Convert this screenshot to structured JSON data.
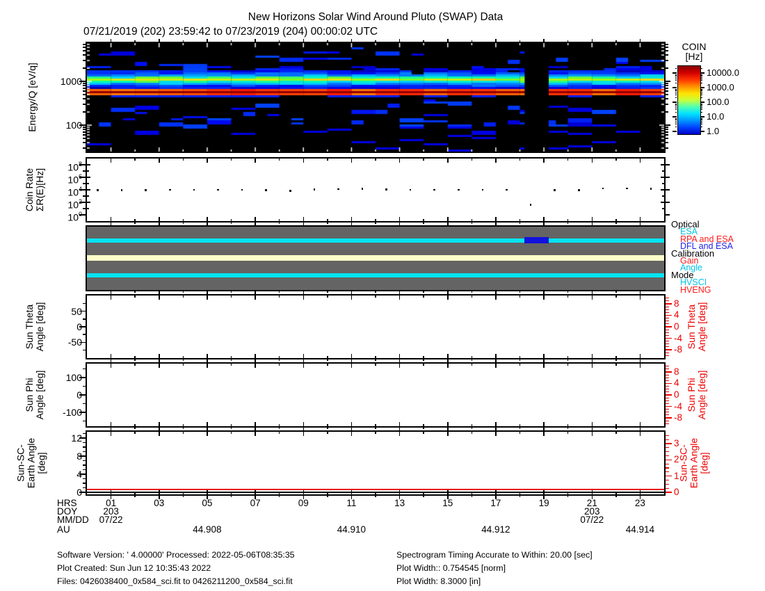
{
  "header": {
    "title": "New Horizons Solar Wind Around Pluto (SWAP) Data",
    "subtitle": "07/21/2019 (202) 23:59:42 to 07/23/2019 (204) 00:00:02 UTC"
  },
  "colorbar": {
    "title_line1": "COIN",
    "title_line2": "[Hz]",
    "tick_labels": [
      "10000.0",
      "1000.0",
      "100.0",
      "10.0",
      "1.0"
    ],
    "gradient_stops": [
      "#8a0000",
      "#d10000",
      "#ff3300",
      "#ff9100",
      "#ffe100",
      "#c8ff3c",
      "#50ffb4",
      "#00e1ff",
      "#0096ff",
      "#0041ff",
      "#0000c8"
    ]
  },
  "panels": {
    "spectrogram": {
      "ylabel": "Energy/Q [eV/q]",
      "ytick_labels": [
        "1000",
        "100"
      ]
    },
    "coin_rate": {
      "ylabel_lines": [
        "Coin Rate",
        "ΣR(E)[Hz]"
      ],
      "ytick_exponents": [
        8,
        6,
        4,
        2,
        0
      ]
    },
    "status": {
      "groups": [
        {
          "label": "Optical",
          "color": "#000000",
          "items": [
            {
              "label": "ESA",
              "color": "#00c4e8"
            },
            {
              "label": "RPA and ESA",
              "color": "#ff1a1a"
            },
            {
              "label": "DFL and ESA",
              "color": "#2222ee"
            }
          ]
        },
        {
          "label": "Calibration",
          "color": "#000000",
          "items": [
            {
              "label": "Gain",
              "color": "#ff1a1a"
            },
            {
              "label": "Angle",
              "color": "#00c4e8"
            }
          ]
        },
        {
          "label": "Mode",
          "color": "#000000",
          "items": [
            {
              "label": "HVSCI",
              "color": "#00c4e8"
            },
            {
              "label": "HVENG",
              "color": "#ff1a1a"
            }
          ]
        }
      ]
    },
    "sun_theta": {
      "title_lines": [
        "Sun Theta",
        "Angle [deg]"
      ],
      "left_ticks": [
        {
          "v": 50,
          "label": "50"
        },
        {
          "v": 0,
          "label": "0"
        },
        {
          "v": -50,
          "label": "-50"
        }
      ],
      "left_range": [
        -101,
        101
      ],
      "right_ticks": [
        {
          "v": 8,
          "label": "8"
        },
        {
          "v": 4,
          "label": "4"
        },
        {
          "v": 0,
          "label": "0"
        },
        {
          "v": -4,
          "label": "-4"
        },
        {
          "v": -8,
          "label": "-8"
        }
      ],
      "right_range": [
        -10.9,
        10.9
      ],
      "right_title_lines": [
        "Sun Theta",
        "Angle [deg]"
      ]
    },
    "sun_phi": {
      "title_lines": [
        "Sun Phi",
        "Angle [deg]"
      ],
      "left_ticks": [
        {
          "v": 100,
          "label": "100"
        },
        {
          "v": 0,
          "label": "0"
        },
        {
          "v": -100,
          "label": "-100"
        }
      ],
      "left_range": [
        -180,
        180
      ],
      "right_ticks": [
        {
          "v": 8,
          "label": "8"
        },
        {
          "v": 4,
          "label": "4"
        },
        {
          "v": 0,
          "label": "0"
        },
        {
          "v": -4,
          "label": "-4"
        },
        {
          "v": -8,
          "label": "-8"
        }
      ],
      "right_range": [
        -10.9,
        10.9
      ],
      "right_title_lines": [
        "Sun Phi",
        "Angle [deg]"
      ]
    },
    "sun_sc_earth": {
      "title_lines": [
        "Sun-SC-",
        "Earth Angle",
        "[deg]"
      ],
      "left_ticks": [
        {
          "v": 12,
          "label": "12"
        },
        {
          "v": 8,
          "label": "8"
        },
        {
          "v": 4,
          "label": "4"
        },
        {
          "v": 0,
          "label": "0"
        }
      ],
      "left_range": [
        -0.46,
        13.4
      ],
      "right_ticks": [
        {
          "v": 3,
          "label": "3"
        },
        {
          "v": 2,
          "label": "2"
        },
        {
          "v": 1,
          "label": "1"
        },
        {
          "v": 0,
          "label": "0"
        }
      ],
      "right_range": [
        -0.13,
        3.73
      ],
      "right_title_lines": [
        "Sun-SC-",
        "Earth Angle",
        "[deg]"
      ]
    }
  },
  "xaxis": {
    "row_labels": [
      "HRS",
      "DOY",
      "MM/DD",
      "AU"
    ],
    "hour_labels": [
      {
        "hour": 1,
        "label": "01"
      },
      {
        "hour": 3,
        "label": "03"
      },
      {
        "hour": 5,
        "label": "05"
      },
      {
        "hour": 7,
        "label": "07"
      },
      {
        "hour": 9,
        "label": "09"
      },
      {
        "hour": 11,
        "label": "11"
      },
      {
        "hour": 13,
        "label": "13"
      },
      {
        "hour": 15,
        "label": "15"
      },
      {
        "hour": 17,
        "label": "17"
      },
      {
        "hour": 19,
        "label": "19"
      },
      {
        "hour": 21,
        "label": "21"
      },
      {
        "hour": 23,
        "label": "23"
      }
    ],
    "doy_entries": [
      {
        "hour": 1,
        "doy": "203",
        "mmdd": "07/22"
      },
      {
        "hour": 21,
        "doy": "203",
        "mmdd": "07/22"
      }
    ],
    "au_entries": [
      {
        "hour": 5,
        "label": "44.908"
      },
      {
        "hour": 11,
        "label": "44.910"
      },
      {
        "hour": 17,
        "label": "44.912"
      },
      {
        "hour": 23,
        "label": "44.914"
      }
    ]
  },
  "footer": {
    "left": [
      "Software Version:  ' 4.00000'  Processed: 2022-05-06T08:35:35",
      "Plot Created: Sun Jun 12 10:35:43 2022",
      "Files: 0426038400_0x584_sci.fit to 0426211200_0x584_sci.fit"
    ],
    "right": [
      "Spectrogram Timing Accurate to Within: 20.00 [sec]",
      "Plot Width:: 0.754545 [norm]",
      "Plot Width: 8.3000 [in]"
    ]
  },
  "chart_data": [
    {
      "type": "heatmap",
      "title": "Energy/Q spectrogram",
      "x_axis": "Time, hours of 07/22/2019 (DOY 203)",
      "x_range_hours": [
        0,
        24
      ],
      "y_axis": "Energy/Q [eV/q]",
      "y_scale": "log",
      "y_range": [
        25,
        7500
      ],
      "z_axis": "COIN [Hz]",
      "z_scale": "log",
      "z_colorbar_ticks": [
        10000.0,
        1000.0,
        100.0,
        10.0,
        1.0
      ],
      "render_seed": 911,
      "features": [
        {
          "name": "solar-wind-proton-beam",
          "energy_ev_q": 600,
          "extent_ev_q": [
            500,
            720
          ],
          "peak_coin_hz": 8000,
          "extent_hours": [
            0,
            24
          ],
          "appearance": "continuous dark-red/red band with orange edges"
        },
        {
          "name": "secondary-ion-band",
          "energy_ev_q": 1150,
          "extent_ev_q": [
            850,
            1900
          ],
          "peak_coin_hz": 300,
          "extent_hours": [
            0,
            24
          ],
          "appearance": "continuous cyan band with yellow-green core"
        },
        {
          "name": "sporadic-counts",
          "extent_ev_q": [
            30,
            6500
          ],
          "coin_hz": 5,
          "appearance": "scattered blue blocks, hourly blocky structure"
        },
        {
          "name": "data-gap",
          "extent_hours": [
            18.2,
            19.2
          ],
          "appearance": "black column, no data"
        }
      ]
    },
    {
      "type": "scatter",
      "title": "Coin Rate ΣR(E)[Hz]",
      "y_scale": "log",
      "y_range_exponents": [
        0,
        9
      ],
      "x_hours": [
        0.45,
        1.45,
        2.45,
        3.45,
        4.45,
        5.45,
        6.45,
        7.45,
        8.45,
        9.45,
        10.45,
        11.45,
        12.45,
        13.45,
        14.45,
        15.45,
        16.45,
        17.45,
        18.45,
        19.45,
        20.45,
        21.45,
        22.45,
        23.45
      ],
      "values_hz": [
        8500,
        9000,
        8800,
        9500,
        10000,
        10000,
        9600,
        9200,
        7200,
        11000,
        12500,
        14000,
        11500,
        10500,
        9800,
        9800,
        10200,
        9600,
        40,
        9400,
        9000,
        17000,
        16000,
        14500
      ]
    },
    {
      "type": "status-bars",
      "background": "#646464",
      "stripes": [
        {
          "group": "Optical",
          "state": "ESA",
          "color": "#00e4f2",
          "extent_hours": [
            0,
            24
          ],
          "segments": [
            {
              "state": "DFL and ESA",
              "color": "#1111dd",
              "extent_hours": [
                18.2,
                19.2
              ]
            }
          ]
        },
        {
          "group": "Calibration",
          "state": "idle",
          "color": "#ffffcb",
          "extent_hours": [
            0,
            24
          ],
          "segments": []
        },
        {
          "group": "Mode",
          "state": "HVSCI",
          "color": "#00e4f2",
          "extent_hours": [
            0,
            24
          ],
          "segments": []
        }
      ]
    },
    {
      "type": "line",
      "title": "Sun Theta Angle [deg]",
      "series": [],
      "note": "no visible trace"
    },
    {
      "type": "line",
      "title": "Sun Phi Angle [deg]",
      "series": [],
      "note": "no visible trace"
    },
    {
      "type": "line",
      "title": "Sun-SC-Earth Angle [deg]",
      "series": [
        {
          "name": "black-left-scale",
          "color": "#111111",
          "value_deg": 0.15,
          "extent_hours": [
            0,
            24
          ]
        },
        {
          "name": "red-right-scale",
          "color": "#ee0000",
          "value_deg": 0.2,
          "extent_hours": [
            0,
            24
          ]
        }
      ]
    }
  ]
}
